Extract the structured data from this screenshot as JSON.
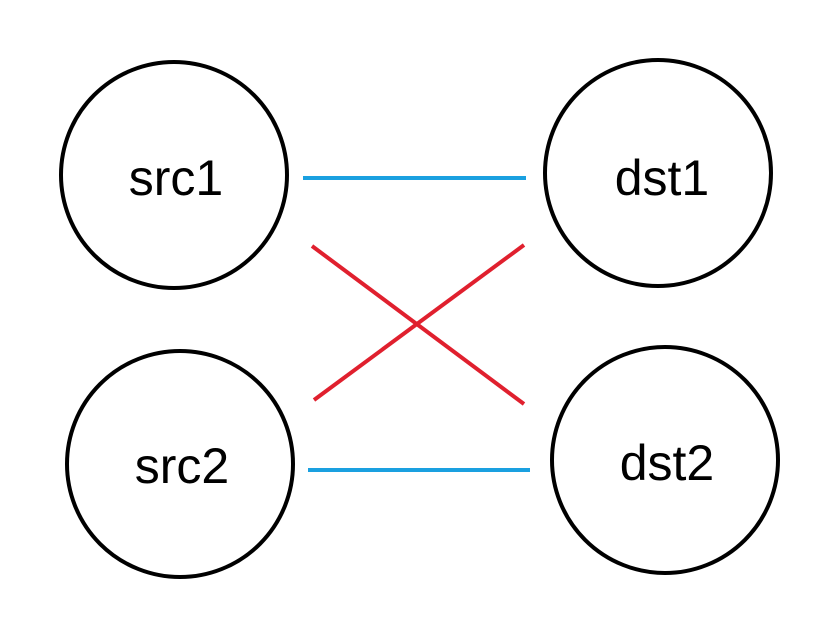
{
  "nodes": {
    "src1": {
      "label": "src1"
    },
    "src2": {
      "label": "src2"
    },
    "dst1": {
      "label": "dst1"
    },
    "dst2": {
      "label": "dst2"
    }
  },
  "edges": [
    {
      "from": "src1",
      "to": "dst1",
      "color": "#1aa0e0"
    },
    {
      "from": "src2",
      "to": "dst2",
      "color": "#1aa0e0"
    },
    {
      "from": "src1",
      "to": "dst2",
      "color": "#e0202e"
    },
    {
      "from": "src2",
      "to": "dst1",
      "color": "#e0202e"
    }
  ],
  "colors": {
    "node_stroke": "#000000",
    "background": "#ffffff"
  }
}
